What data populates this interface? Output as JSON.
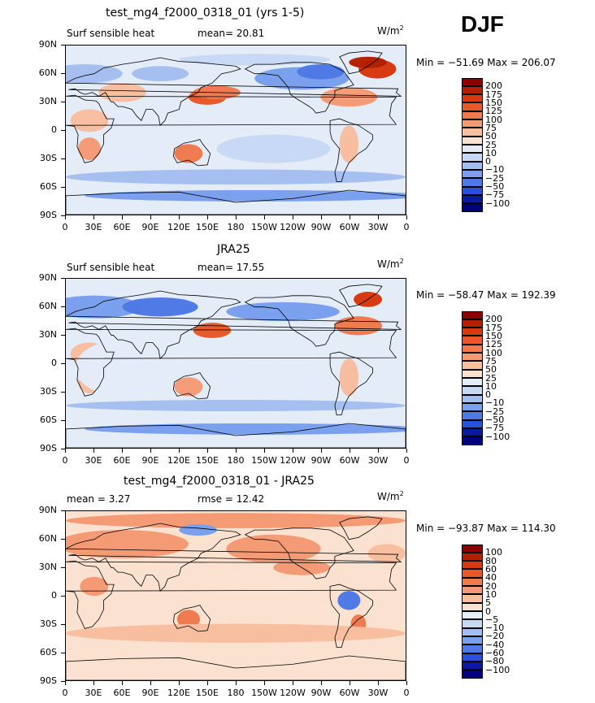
{
  "season": "DJF",
  "panels": [
    {
      "title": "test_mg4_f2000_0318_01 (yrs 1-5)",
      "left_label": "Surf sensible heat",
      "mid_label": "mean=   20.81",
      "units": "W/m",
      "units_sup": "2",
      "minmax": "Min = −51.69  Max = 206.07",
      "colorbar_levels": [
        "200",
        "175",
        "150",
        "125",
        "100",
        "75",
        "50",
        "25",
        "10",
        "0",
        "−10",
        "−25",
        "−50",
        "−75",
        "−100"
      ]
    },
    {
      "title": "JRA25",
      "left_label": "Surf sensible heat",
      "mid_label": "mean=   17.55",
      "units": "W/m",
      "units_sup": "2",
      "minmax": "Min = −58.47  Max = 192.39",
      "colorbar_levels": [
        "200",
        "175",
        "150",
        "125",
        "100",
        "75",
        "50",
        "25",
        "10",
        "0",
        "−10",
        "−25",
        "−50",
        "−75",
        "−100"
      ]
    },
    {
      "title": "test_mg4_f2000_0318_01 - JRA25",
      "left_label": "mean =    3.27",
      "mid_label": "rmse =   12.42",
      "units": "W/m",
      "units_sup": "2",
      "minmax": "Min = −93.87  Max = 114.30",
      "colorbar_levels": [
        "100",
        "80",
        "60",
        "40",
        "20",
        "10",
        "5",
        "0",
        "−5",
        "−10",
        "−20",
        "−40",
        "−60",
        "−80",
        "−100"
      ]
    }
  ],
  "lat_ticks": [
    "90N",
    "60N",
    "30N",
    "0",
    "30S",
    "60S",
    "90S"
  ],
  "lon_ticks": [
    "0",
    "30E",
    "60E",
    "90E",
    "120E",
    "150E",
    "180",
    "150W",
    "120W",
    "90W",
    "60W",
    "30W",
    "0"
  ],
  "colors": {
    "abs_scale": [
      "#8b0000",
      "#b32000",
      "#d63a10",
      "#e8582a",
      "#f07a50",
      "#f49a75",
      "#f7bea0",
      "#fbe2d0",
      "#e4ecf8",
      "#c6d8f4",
      "#a3bff0",
      "#7aa0ec",
      "#4f7ae6",
      "#2a4fd9",
      "#0a1a9e",
      "#00007a"
    ],
    "diff_scale": [
      "#8b0000",
      "#b32000",
      "#d63a10",
      "#e8582a",
      "#f07a50",
      "#f49a75",
      "#f7bea0",
      "#fbe2d0",
      "#e4ecf8",
      "#c6d8f4",
      "#a3bff0",
      "#7aa0ec",
      "#4f7ae6",
      "#2a4fd9",
      "#0a1a9e",
      "#00007a"
    ],
    "coast": "#000000"
  },
  "chart_data": [
    {
      "type": "heatmap",
      "title": "test_mg4_f2000_0318_01 (yrs 1-5)",
      "xlabel": "",
      "ylabel": "",
      "x_ticks": [
        "0",
        "30E",
        "60E",
        "90E",
        "120E",
        "150E",
        "180",
        "150W",
        "120W",
        "90W",
        "60W",
        "30W",
        "0"
      ],
      "y_ticks": [
        "90N",
        "60N",
        "30N",
        "0",
        "30S",
        "60S",
        "90S"
      ],
      "levels": [
        -100,
        -75,
        -50,
        -25,
        -10,
        0,
        10,
        25,
        50,
        75,
        100,
        125,
        150,
        175,
        200
      ],
      "mean": 20.81,
      "min": -51.69,
      "max": 206.07
    },
    {
      "type": "heatmap",
      "title": "JRA25",
      "xlabel": "",
      "ylabel": "",
      "x_ticks": [
        "0",
        "30E",
        "60E",
        "90E",
        "120E",
        "150E",
        "180",
        "150W",
        "120W",
        "90W",
        "60W",
        "30W",
        "0"
      ],
      "y_ticks": [
        "90N",
        "60N",
        "30N",
        "0",
        "30S",
        "60S",
        "90S"
      ],
      "levels": [
        -100,
        -75,
        -50,
        -25,
        -10,
        0,
        10,
        25,
        50,
        75,
        100,
        125,
        150,
        175,
        200
      ],
      "mean": 17.55,
      "min": -58.47,
      "max": 192.39
    },
    {
      "type": "heatmap",
      "title": "test_mg4_f2000_0318_01 - JRA25",
      "xlabel": "",
      "ylabel": "",
      "x_ticks": [
        "0",
        "30E",
        "60E",
        "90E",
        "120E",
        "150E",
        "180",
        "150W",
        "120W",
        "90W",
        "60W",
        "30W",
        "0"
      ],
      "y_ticks": [
        "90N",
        "60N",
        "30N",
        "0",
        "30S",
        "60S",
        "90S"
      ],
      "levels": [
        -100,
        -80,
        -60,
        -40,
        -20,
        -10,
        -5,
        0,
        5,
        10,
        20,
        40,
        60,
        80,
        100
      ],
      "mean": 3.27,
      "rmse": 12.42,
      "min": -93.87,
      "max": 114.3
    }
  ]
}
